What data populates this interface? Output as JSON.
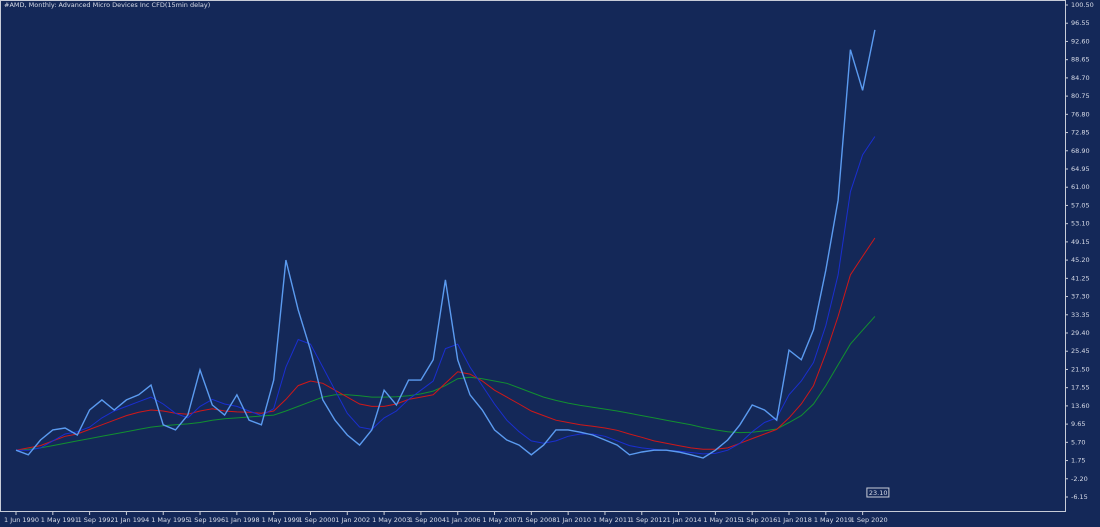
{
  "chart_data": {
    "type": "line",
    "title": "#AMD, Monthly: Advanced Micro Devices Inc CFD(15min delay)",
    "price_label": "23.10",
    "categories": [
      "1 Jun 1990",
      null,
      null,
      "1 May 1991",
      null,
      null,
      "1 Sep 1992",
      null,
      null,
      "1 Jan 1994",
      null,
      null,
      "1 May 1995",
      null,
      null,
      "1 Sep 1996",
      null,
      null,
      "1 Jan 1998",
      null,
      null,
      "1 May 1999",
      null,
      null,
      "1 Sep 2000",
      null,
      null,
      "1 Jan 2002",
      null,
      null,
      "1 May 2003",
      null,
      null,
      "1 Sep 2004",
      null,
      null,
      "1 Jan 2006",
      null,
      null,
      "1 May 2007",
      null,
      null,
      "1 Sep 2008",
      null,
      null,
      "1 Jan 2010",
      null,
      null,
      "1 May 2011",
      null,
      null,
      "1 Sep 2012",
      null,
      null,
      "1 Jan 2014",
      null,
      null,
      "1 May 2015",
      null,
      null,
      "1 Sep 2016",
      null,
      null,
      "1 Jan 2018",
      null,
      null,
      "1 May 2019",
      null,
      null,
      "1 Sep 2020",
      null
    ],
    "series": [
      {
        "color": "#5b9bf0",
        "values": [
          4,
          3,
          6.2,
          8.4,
          8.8,
          7.3,
          12.7,
          14.9,
          12.7,
          14.9,
          16,
          18.1,
          9.5,
          8.4,
          11.6,
          21.4,
          13.8,
          11.6,
          16,
          10.5,
          9.5,
          19.2,
          45.2,
          34.4,
          25.7,
          14.9,
          10.5,
          7.3,
          5.1,
          8.4,
          17,
          13.8,
          19.2,
          19.2,
          23.6,
          40.9,
          23.6,
          16,
          12.7,
          8.4,
          6.2,
          5.1,
          3,
          5.1,
          8.4,
          8.4,
          7.9,
          7.3,
          6.2,
          5.1,
          3,
          3.6,
          4,
          4,
          3.6,
          3,
          2.3,
          4,
          6.2,
          9.5,
          13.8,
          12.7,
          10.5,
          25.7,
          23.6,
          30.1,
          43,
          58.2,
          90.8,
          82,
          95.1
        ]
      },
      {
        "color": "#1a2fd0",
        "values": [
          4,
          4,
          4.5,
          6,
          7.5,
          8,
          9,
          11,
          12.5,
          13.5,
          14.5,
          15.5,
          14,
          12,
          11,
          13.5,
          15,
          14,
          13.5,
          12.5,
          11.5,
          13,
          22,
          28,
          27,
          22,
          17,
          12,
          9,
          8.5,
          11,
          12.5,
          15,
          17,
          19,
          26,
          27,
          22,
          18,
          14,
          10.5,
          8,
          6,
          5.5,
          6,
          7,
          7.5,
          7.5,
          7,
          6,
          5,
          4.5,
          4.2,
          4,
          3.8,
          3.5,
          3.2,
          3.3,
          4,
          5.5,
          8,
          10,
          11,
          16,
          19,
          23,
          31,
          42,
          60,
          68,
          72
        ]
      },
      {
        "color": "#d01818",
        "values": [
          4,
          4.5,
          5,
          6,
          7,
          7.5,
          8.5,
          9.5,
          10.5,
          11.5,
          12.2,
          12.7,
          12.5,
          12,
          11.8,
          12.5,
          13,
          12.5,
          12.3,
          12.2,
          12,
          12.5,
          15,
          18,
          19,
          18.5,
          17,
          15.5,
          14,
          13.5,
          13.5,
          14,
          15,
          15.5,
          16,
          18.5,
          21,
          20.5,
          19,
          17,
          15.5,
          14,
          12.5,
          11.5,
          10.5,
          10,
          9.5,
          9.2,
          8.8,
          8.3,
          7.5,
          6.8,
          6,
          5.5,
          5,
          4.5,
          4.2,
          4.2,
          4.5,
          5.5,
          6.5,
          7.5,
          8.5,
          11,
          14,
          18,
          25,
          33,
          42,
          46,
          50
        ]
      },
      {
        "color": "#129030",
        "values": [
          4,
          4.2,
          4.5,
          5,
          5.5,
          6,
          6.5,
          7,
          7.5,
          8,
          8.5,
          9,
          9.3,
          9.5,
          9.7,
          10,
          10.5,
          10.8,
          11,
          11.2,
          11.4,
          11.6,
          12.5,
          13.5,
          14.5,
          15.5,
          16,
          16,
          15.8,
          15.5,
          15.5,
          15.6,
          15.8,
          16.2,
          16.8,
          18,
          19.5,
          19.8,
          19.5,
          19,
          18.5,
          17.5,
          16.5,
          15.5,
          14.8,
          14.2,
          13.7,
          13.3,
          12.9,
          12.5,
          12,
          11.5,
          11,
          10.5,
          10,
          9.5,
          8.9,
          8.4,
          8,
          7.8,
          7.9,
          8.2,
          8.6,
          10,
          11.5,
          14,
          18,
          22.5,
          27,
          30,
          33
        ]
      }
    ],
    "ylim": [
      -6.15,
      100.5
    ],
    "yticks": [
      {
        "value": -6.15,
        "label": "-6.15"
      },
      {
        "value": -2.2,
        "label": "-2.20"
      },
      {
        "value": 1.75,
        "label": "1.75"
      },
      {
        "value": 5.7,
        "label": "5.70"
      },
      {
        "value": 9.65,
        "label": "9.65"
      },
      {
        "value": 13.6,
        "label": "13.60"
      },
      {
        "value": 17.55,
        "label": "17.55"
      },
      {
        "value": 21.5,
        "label": "21.50"
      },
      {
        "value": 25.45,
        "label": "25.45"
      },
      {
        "value": 29.4,
        "label": "29.40"
      },
      {
        "value": 33.35,
        "label": "33.35"
      },
      {
        "value": 37.3,
        "label": "37.30"
      },
      {
        "value": 41.25,
        "label": "41.25"
      },
      {
        "value": 45.2,
        "label": "45.20"
      },
      {
        "value": 49.15,
        "label": "49.15"
      },
      {
        "value": 53.1,
        "label": "53.10"
      },
      {
        "value": 57.05,
        "label": "57.05"
      },
      {
        "value": 61,
        "label": "61.00"
      },
      {
        "value": 64.95,
        "label": "64.95"
      },
      {
        "value": 68.9,
        "label": "68.90"
      },
      {
        "value": 72.85,
        "label": "72.85"
      },
      {
        "value": 76.8,
        "label": "76.80"
      },
      {
        "value": 80.75,
        "label": "80.75"
      },
      {
        "value": 84.7,
        "label": "84.70"
      },
      {
        "value": 88.65,
        "label": "88.65"
      },
      {
        "value": 92.6,
        "label": "92.60"
      },
      {
        "value": 96.55,
        "label": "96.55"
      },
      {
        "value": 100.5,
        "label": "100.50"
      }
    ],
    "grid": false
  }
}
